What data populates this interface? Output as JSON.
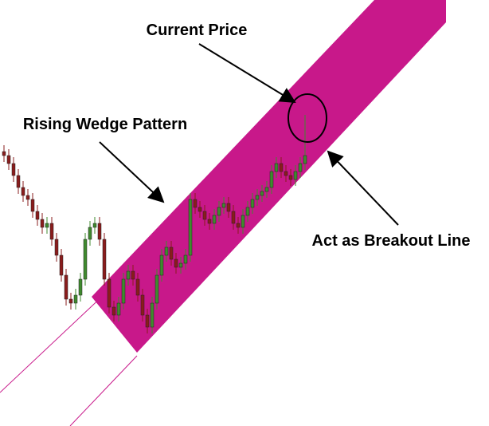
{
  "chart_data": {
    "type": "candlestick",
    "annotations": {
      "current_price": "Current Price",
      "pattern": "Rising Wedge Pattern",
      "breakout": "Act as Breakout Line"
    },
    "ylim": [
      0,
      534
    ],
    "up_color": "#3f8a2e",
    "down_color": "#8a1c1c",
    "band_color": "#c8188a",
    "open": [
      344,
      339,
      329,
      314,
      299,
      289,
      284,
      269,
      259,
      249,
      254,
      234,
      214,
      189,
      159,
      154,
      164,
      184,
      234,
      249,
      254,
      234,
      184,
      149,
      139,
      154,
      184,
      194,
      184,
      164,
      139,
      124,
      154,
      189,
      214,
      224,
      209,
      199,
      204,
      214,
      284,
      274,
      269,
      259,
      254,
      264,
      274,
      279,
      269,
      254,
      249,
      264,
      274,
      284,
      289,
      294,
      299,
      319,
      329,
      319,
      314,
      309,
      319,
      329
    ],
    "high": [
      352,
      347,
      337,
      322,
      307,
      297,
      292,
      277,
      267,
      262,
      262,
      242,
      222,
      197,
      167,
      172,
      192,
      242,
      257,
      262,
      262,
      242,
      192,
      157,
      162,
      192,
      202,
      202,
      192,
      172,
      147,
      162,
      197,
      222,
      232,
      232,
      217,
      212,
      222,
      292,
      292,
      282,
      277,
      267,
      272,
      282,
      287,
      287,
      277,
      262,
      272,
      282,
      292,
      297,
      302,
      307,
      327,
      337,
      337,
      327,
      322,
      327,
      337,
      390
    ],
    "low": [
      331,
      321,
      306,
      291,
      281,
      276,
      261,
      251,
      241,
      241,
      226,
      206,
      181,
      151,
      146,
      146,
      156,
      176,
      226,
      241,
      226,
      176,
      141,
      131,
      131,
      146,
      176,
      176,
      156,
      131,
      116,
      116,
      146,
      181,
      206,
      201,
      191,
      191,
      196,
      206,
      266,
      261,
      251,
      246,
      246,
      256,
      266,
      261,
      246,
      241,
      241,
      256,
      266,
      276,
      281,
      286,
      291,
      311,
      311,
      306,
      301,
      301,
      311,
      321
    ],
    "close": [
      339,
      329,
      314,
      299,
      289,
      284,
      269,
      259,
      249,
      254,
      234,
      214,
      189,
      159,
      154,
      164,
      184,
      234,
      249,
      254,
      234,
      184,
      149,
      139,
      154,
      184,
      194,
      184,
      164,
      139,
      124,
      154,
      189,
      214,
      224,
      209,
      199,
      204,
      214,
      284,
      274,
      269,
      259,
      254,
      264,
      274,
      279,
      269,
      254,
      249,
      264,
      274,
      284,
      289,
      294,
      299,
      319,
      329,
      319,
      314,
      309,
      319,
      329,
      339
    ]
  }
}
